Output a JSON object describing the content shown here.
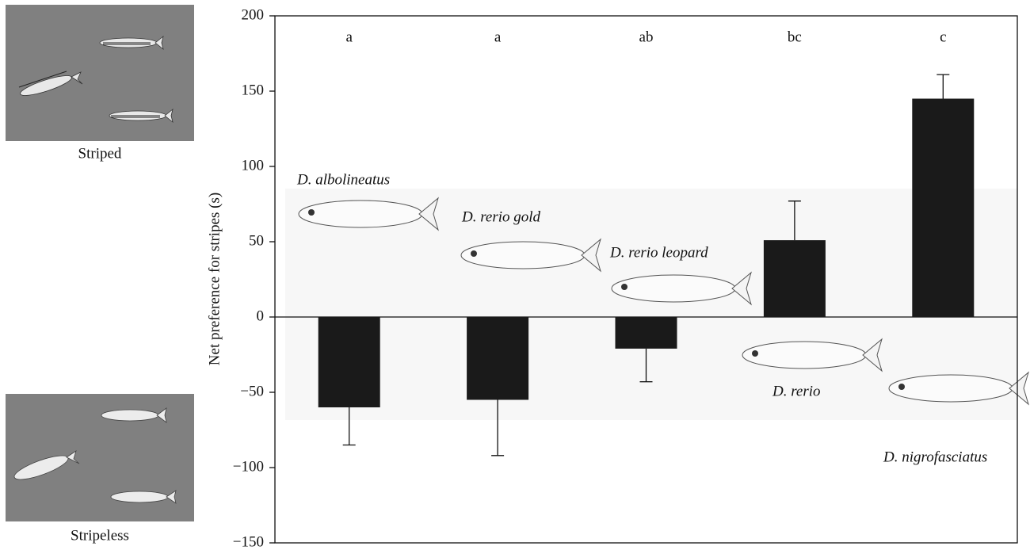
{
  "chart_data": {
    "type": "bar",
    "ylabel": "Net preference for stripes (s)",
    "categories": [
      null,
      null,
      null,
      null,
      null
    ],
    "values": [
      -60,
      -55,
      -21,
      51,
      145
    ],
    "errors": [
      25,
      37,
      22,
      26,
      16
    ],
    "significance_labels": [
      "a",
      "a",
      "ab",
      "bc",
      "c"
    ],
    "annotations": [
      "D. albolineatus",
      "D. rerio gold",
      "D. rerio leopard",
      "D. rerio",
      "D. nigrofasciatus"
    ],
    "stimulus_labels": [
      "Striped",
      "Stripeless"
    ],
    "color": "#1a1a1a",
    "ylim": [
      -150,
      200
    ],
    "yticks": [
      {
        "value": -150,
        "label": "−150"
      },
      {
        "value": -100,
        "label": "−100"
      },
      {
        "value": -50,
        "label": "−50"
      },
      0,
      50,
      100,
      150,
      200
    ]
  }
}
